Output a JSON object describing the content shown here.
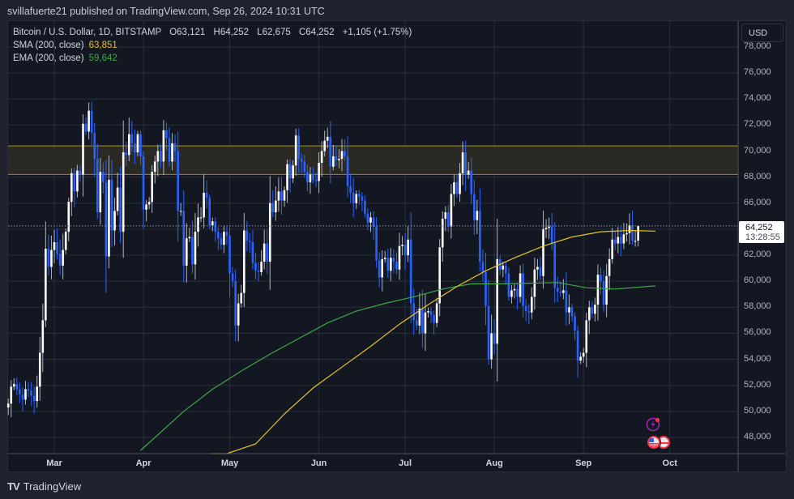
{
  "header": {
    "publisher_text": "svillafuerte21 published on TradingView.com, Sep 26, 2024 10:31 UTC"
  },
  "legend": {
    "symbol": "Bitcoin / U.S. Dollar, 1D, BITSTAMP",
    "open": "O63,121",
    "high": "H64,252",
    "low": "L62,675",
    "close": "C64,252",
    "change": "+1,105 (+1.75%)",
    "sma_label": "SMA (200, close)",
    "sma_value": "63,851",
    "ema_label": "EMA (200, close)",
    "ema_value": "59,642"
  },
  "price_axis": {
    "currency_button": "USD",
    "last_price": "64,252",
    "countdown": "13:28:55"
  },
  "footer": {
    "brand": "TradingView",
    "logo_mark": "TV"
  },
  "colors": {
    "background": "#131722",
    "outer_background": "#1f222d",
    "grid": "#2a2e39",
    "up_candle": "#ffffff",
    "down_candle": "#2962ff",
    "sma": "#e6c229",
    "ema": "#3fa64a",
    "zone_fill": "#2b2a24",
    "zone_border": "#8a7e2a",
    "event_red": "#f23645",
    "event_purple": "#9c27b0"
  },
  "chart_data": {
    "type": "candlestick",
    "title": "Bitcoin / U.S. Dollar, 1D, BITSTAMP",
    "ylabel": "USD",
    "ylim": [
      47000,
      79000
    ],
    "y_ticks": [
      48000,
      50000,
      52000,
      54000,
      56000,
      58000,
      60000,
      62000,
      64000,
      66000,
      68000,
      70000,
      72000,
      74000,
      76000,
      78000
    ],
    "y_tick_labels": [
      "48,000",
      "50,000",
      "52,000",
      "54,000",
      "56,000",
      "58,000",
      "60,000",
      "62,000",
      "64,000",
      "66,000",
      "68,000",
      "70,000",
      "72,000",
      "74,000",
      "76,000",
      "78,000"
    ],
    "x_tick_labels": [
      {
        "label": "Mar",
        "day": 0
      },
      {
        "label": "Apr",
        "day": 31
      },
      {
        "label": "May",
        "day": 61
      },
      {
        "label": "Jun",
        "day": 92
      },
      {
        "label": "Jul",
        "day": 122
      },
      {
        "label": "Aug",
        "day": 153
      },
      {
        "label": "Sep",
        "day": 184
      },
      {
        "label": "Oct",
        "day": 214
      }
    ],
    "grid": true,
    "resistance_zone": {
      "low": 68200,
      "high": 70400
    },
    "last_price": 64252,
    "start_day": -16,
    "candles_close": [
      50600,
      51900,
      52100,
      51700,
      51300,
      50900,
      51700,
      51600,
      51200,
      50800,
      51900,
      54500,
      57000,
      62500,
      61100,
      62400,
      63000,
      62100,
      61200,
      62400,
      63800,
      66100,
      68300,
      66900,
      68500,
      68200,
      72100,
      71500,
      73100,
      71400,
      69400,
      65300,
      68400,
      67600,
      61900,
      67800,
      63900,
      65400,
      67200,
      63800,
      69900,
      69700,
      71300,
      70600,
      69900,
      71300,
      69600,
      65500,
      65900,
      66100,
      68400,
      69200,
      70000,
      69200,
      71600,
      71000,
      69200,
      70600,
      70000,
      65400,
      65400,
      61200,
      63300,
      63400,
      61300,
      63800,
      64900,
      64900,
      66800,
      66400,
      64300,
      64600,
      63800,
      63300,
      62800,
      63800,
      63500,
      60600,
      60000,
      56600,
      58300,
      59100,
      63900,
      63100,
      63000,
      61400,
      60800,
      60700,
      61500,
      62900,
      61500,
      66000,
      65300,
      66200,
      66900,
      66200,
      67000,
      69000,
      67900,
      68900,
      71200,
      69400,
      69200,
      68400,
      67600,
      68200,
      67800,
      67700,
      69100,
      70000,
      70800,
      71100,
      68800,
      69600,
      69300,
      69400,
      70000,
      69600,
      67300,
      66800,
      66000,
      66700,
      66500,
      66200,
      65200,
      64500,
      64900,
      64200,
      61600,
      60300,
      61700,
      61800,
      60800,
      61800,
      61500,
      60900,
      62700,
      62800,
      62000,
      63200,
      58300,
      57000,
      56600,
      57900,
      56000,
      57600,
      57700,
      57400,
      56800,
      58300,
      62600,
      64800,
      65300,
      64200,
      66700,
      67600,
      66700,
      68300,
      69900,
      68200,
      68500,
      66700,
      64700,
      65400,
      61500,
      60700,
      58100,
      54000,
      56000,
      55200,
      61700,
      60900,
      61200,
      60600,
      58800,
      59300,
      59400,
      58800,
      60600,
      58100,
      57700,
      57600,
      58800,
      60900,
      61100,
      60400,
      64000,
      64100,
      64200,
      62900,
      59500,
      59200,
      59100,
      59300,
      57600,
      58000,
      57300,
      56200,
      53900,
      54200,
      54500,
      57000,
      58000,
      57500,
      58200,
      60500,
      60000,
      58200,
      60400,
      61700,
      63200,
      62900,
      63400,
      62900,
      63600,
      63700,
      64300,
      63100,
      63100,
      64252
    ],
    "sma_values": [
      {
        "day": 55,
        "v": 43000
      },
      {
        "day": 60,
        "v": 45000
      },
      {
        "day": 70,
        "v": 47500
      },
      {
        "day": 80,
        "v": 49800
      },
      {
        "day": 90,
        "v": 51800
      },
      {
        "day": 100,
        "v": 53400
      },
      {
        "day": 110,
        "v": 55000
      },
      {
        "day": 120,
        "v": 56700
      },
      {
        "day": 130,
        "v": 58200
      },
      {
        "day": 140,
        "v": 59600
      },
      {
        "day": 150,
        "v": 60800
      },
      {
        "day": 160,
        "v": 61800
      },
      {
        "day": 170,
        "v": 62700
      },
      {
        "day": 180,
        "v": 63400
      },
      {
        "day": 190,
        "v": 63800
      },
      {
        "day": 200,
        "v": 63900
      },
      {
        "day": 209,
        "v": 63851
      }
    ],
    "ema_values": [
      {
        "day": 30,
        "v": 47000
      },
      {
        "day": 35,
        "v": 48000
      },
      {
        "day": 45,
        "v": 50000
      },
      {
        "day": 55,
        "v": 51700
      },
      {
        "day": 65,
        "v": 53100
      },
      {
        "day": 75,
        "v": 54400
      },
      {
        "day": 85,
        "v": 55600
      },
      {
        "day": 95,
        "v": 56800
      },
      {
        "day": 105,
        "v": 57700
      },
      {
        "day": 115,
        "v": 58300
      },
      {
        "day": 125,
        "v": 58800
      },
      {
        "day": 135,
        "v": 59400
      },
      {
        "day": 145,
        "v": 59800
      },
      {
        "day": 155,
        "v": 59800
      },
      {
        "day": 165,
        "v": 59850
      },
      {
        "day": 175,
        "v": 59900
      },
      {
        "day": 185,
        "v": 59500
      },
      {
        "day": 195,
        "v": 59400
      },
      {
        "day": 209,
        "v": 59642
      }
    ]
  }
}
